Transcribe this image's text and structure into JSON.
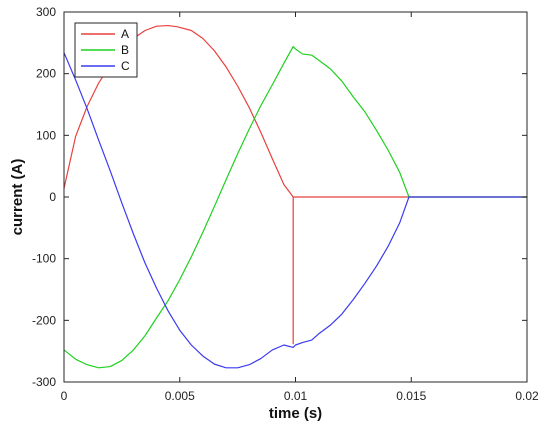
{
  "chart_data": {
    "type": "line",
    "title": "",
    "xlabel": "time (s)",
    "ylabel": "current (A)",
    "xlim": [
      0,
      0.02
    ],
    "ylim": [
      -300,
      300
    ],
    "xticks": [
      0,
      0.005,
      0.01,
      0.015,
      0.02
    ],
    "xtick_labels": [
      "0",
      "0.005",
      "0.01",
      "0.015",
      "0.02"
    ],
    "yticks": [
      -300,
      -200,
      -100,
      0,
      100,
      200,
      300
    ],
    "ytick_labels": [
      "-300",
      "-200",
      "-100",
      "0",
      "100",
      "200",
      "300"
    ],
    "grid": false,
    "legend_position": "top-left",
    "series": [
      {
        "name": "A",
        "color": "#e8413c",
        "x": [
          0,
          0.0005,
          0.001,
          0.0015,
          0.002,
          0.0025,
          0.003,
          0.0035,
          0.004,
          0.0045,
          0.0049,
          0.0055,
          0.006,
          0.0065,
          0.007,
          0.0075,
          0.008,
          0.0085,
          0.009,
          0.0095,
          0.0099,
          0.0099,
          0.0099,
          0.0105,
          0.011,
          0.012,
          0.013,
          0.014,
          0.015,
          0.016,
          0.017,
          0.018,
          0.019,
          0.02
        ],
        "y": [
          14,
          98,
          147,
          185,
          214,
          238,
          257,
          270,
          277,
          278,
          276,
          270,
          257,
          237,
          211,
          180,
          145,
          105,
          62,
          20,
          0,
          -238,
          0,
          0,
          0,
          0,
          0,
          0,
          0,
          0,
          0,
          0,
          0,
          0
        ]
      },
      {
        "name": "B",
        "color": "#1fd11f",
        "x": [
          0,
          0.0005,
          0.001,
          0.0015,
          0.002,
          0.0025,
          0.003,
          0.0035,
          0.004,
          0.0045,
          0.005,
          0.0055,
          0.006,
          0.0065,
          0.007,
          0.0075,
          0.008,
          0.0085,
          0.009,
          0.0095,
          0.0099,
          0.01,
          0.0103,
          0.0107,
          0.011,
          0.0115,
          0.012,
          0.0125,
          0.013,
          0.0135,
          0.014,
          0.0145,
          0.0149,
          0.015,
          0.016,
          0.017,
          0.018,
          0.019,
          0.02
        ],
        "y": [
          -248,
          -263,
          -272,
          -277,
          -275,
          -265,
          -248,
          -225,
          -196,
          -168,
          -134,
          -97,
          -57,
          -15,
          28,
          70,
          110,
          148,
          182,
          217,
          244,
          240,
          232,
          230,
          222,
          208,
          188,
          162,
          138,
          108,
          76,
          40,
          0,
          0,
          0,
          0,
          0,
          0,
          0
        ]
      },
      {
        "name": "C",
        "color": "#3b3bef",
        "x": [
          0,
          0.0005,
          0.001,
          0.0015,
          0.002,
          0.0025,
          0.003,
          0.0035,
          0.004,
          0.0045,
          0.005,
          0.0055,
          0.006,
          0.0065,
          0.007,
          0.0075,
          0.008,
          0.0085,
          0.009,
          0.0095,
          0.0099,
          0.01,
          0.0103,
          0.0107,
          0.011,
          0.0115,
          0.012,
          0.0125,
          0.013,
          0.0135,
          0.014,
          0.0145,
          0.0149,
          0.015,
          0.016,
          0.017,
          0.018,
          0.019,
          0.02
        ],
        "y": [
          234,
          190,
          143,
          92,
          42,
          -10,
          -60,
          -107,
          -148,
          -185,
          -216,
          -240,
          -258,
          -271,
          -277,
          -277,
          -272,
          -262,
          -248,
          -240,
          -244,
          -240,
          -236,
          -232,
          -222,
          -208,
          -190,
          -166,
          -140,
          -112,
          -80,
          -42,
          0,
          0,
          0,
          0,
          0,
          0,
          0
        ]
      }
    ]
  }
}
